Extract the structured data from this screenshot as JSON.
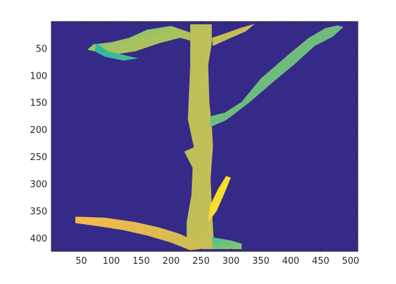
{
  "chart_data": {
    "type": "heatmap",
    "title": "",
    "xlabel": "",
    "ylabel": "",
    "xlim": [
      0,
      512
    ],
    "ylim": [
      424,
      0
    ],
    "y_reversed": true,
    "grid": false,
    "colormap": "parula",
    "background_color": "#352a87",
    "xticks": [
      50,
      100,
      150,
      200,
      250,
      300,
      350,
      400,
      450,
      500
    ],
    "yticks": [
      50,
      100,
      150,
      200,
      250,
      300,
      350,
      400
    ],
    "regions": [
      {
        "name": "main-trunk",
        "colors": [
          "#b6c25a",
          "#c8bd55"
        ],
        "polygon": [
          [
            232,
            5
          ],
          [
            268,
            5
          ],
          [
            268,
            40
          ],
          [
            262,
            80
          ],
          [
            264,
            150
          ],
          [
            268,
            190
          ],
          [
            270,
            230
          ],
          [
            266,
            290
          ],
          [
            268,
            340
          ],
          [
            272,
            420
          ],
          [
            226,
            420
          ],
          [
            226,
            370
          ],
          [
            234,
            320
          ],
          [
            236,
            270
          ],
          [
            222,
            240
          ],
          [
            238,
            232
          ],
          [
            228,
            180
          ],
          [
            230,
            130
          ],
          [
            232,
            80
          ]
        ]
      },
      {
        "name": "right-branch",
        "colors": [
          "#9ac362",
          "#3fb49b"
        ],
        "polygon": [
          [
            265,
            195
          ],
          [
            292,
            182
          ],
          [
            330,
            150
          ],
          [
            370,
            112
          ],
          [
            405,
            80
          ],
          [
            440,
            45
          ],
          [
            470,
            28
          ],
          [
            488,
            10
          ],
          [
            478,
            7
          ],
          [
            458,
            12
          ],
          [
            430,
            30
          ],
          [
            395,
            62
          ],
          [
            350,
            105
          ],
          [
            318,
            148
          ],
          [
            290,
            168
          ],
          [
            265,
            175
          ]
        ]
      },
      {
        "name": "upper-left-branch",
        "colors": [
          "#5cbf8a",
          "#a4c35e",
          "#c3bf57"
        ],
        "polygon": [
          [
            232,
            20
          ],
          [
            200,
            8
          ],
          [
            160,
            15
          ],
          [
            130,
            30
          ],
          [
            100,
            38
          ],
          [
            70,
            42
          ],
          [
            60,
            52
          ],
          [
            85,
            58
          ],
          [
            110,
            60
          ],
          [
            140,
            55
          ],
          [
            180,
            40
          ],
          [
            215,
            30
          ],
          [
            232,
            35
          ]
        ]
      },
      {
        "name": "left-twig",
        "colors": [
          "#2fb4a7",
          "#48bb95"
        ],
        "polygon": [
          [
            75,
            40
          ],
          [
            95,
            55
          ],
          [
            115,
            60
          ],
          [
            145,
            68
          ],
          [
            120,
            72
          ],
          [
            90,
            65
          ],
          [
            72,
            55
          ]
        ]
      },
      {
        "name": "upper-right-twig",
        "colors": [
          "#c7bd56"
        ],
        "polygon": [
          [
            268,
            30
          ],
          [
            290,
            22
          ],
          [
            315,
            12
          ],
          [
            340,
            4
          ],
          [
            325,
            18
          ],
          [
            300,
            30
          ],
          [
            270,
            45
          ]
        ]
      },
      {
        "name": "lower-left-branch",
        "colors": [
          "#f6b94c",
          "#e0bb50",
          "#c7be55"
        ],
        "polygon": [
          [
            40,
            360
          ],
          [
            90,
            362
          ],
          [
            140,
            370
          ],
          [
            180,
            380
          ],
          [
            215,
            392
          ],
          [
            240,
            405
          ],
          [
            262,
            418
          ],
          [
            232,
            422
          ],
          [
            200,
            408
          ],
          [
            160,
            395
          ],
          [
            120,
            385
          ],
          [
            80,
            378
          ],
          [
            40,
            372
          ]
        ]
      },
      {
        "name": "lower-yellow-sprout",
        "colors": [
          "#f7e51b",
          "#f4d63a"
        ],
        "polygon": [
          [
            265,
            340
          ],
          [
            278,
            310
          ],
          [
            292,
            285
          ],
          [
            300,
            288
          ],
          [
            288,
            320
          ],
          [
            276,
            350
          ],
          [
            262,
            370
          ]
        ]
      },
      {
        "name": "bottom-right-root",
        "colors": [
          "#4fbf93",
          "#8cc46b"
        ],
        "polygon": [
          [
            268,
            398
          ],
          [
            300,
            404
          ],
          [
            318,
            410
          ],
          [
            318,
            420
          ],
          [
            270,
            420
          ]
        ]
      }
    ]
  }
}
